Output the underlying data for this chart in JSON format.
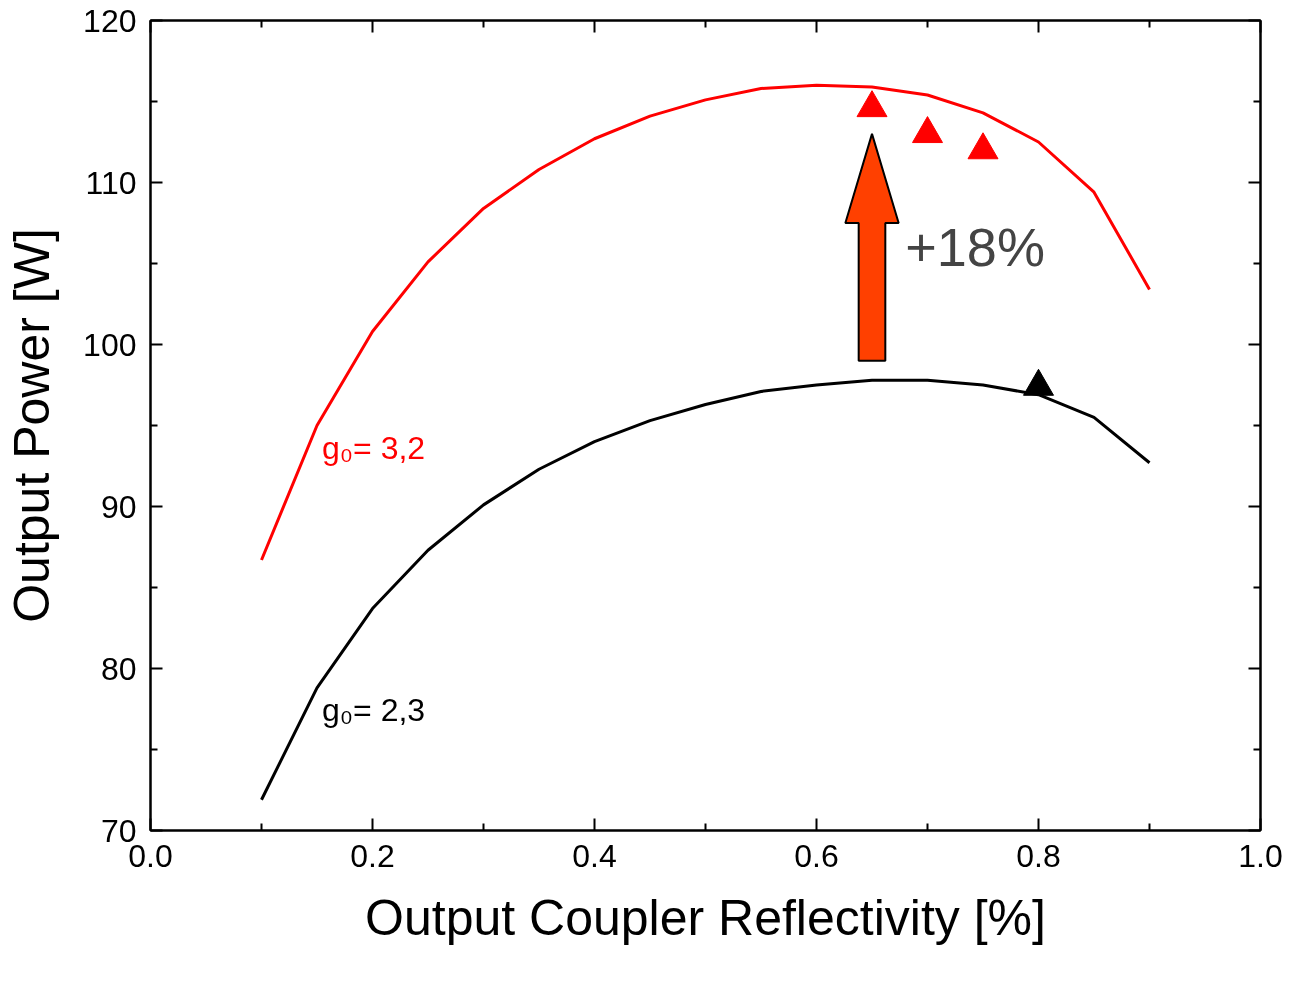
{
  "chart_data": {
    "type": "line",
    "xlabel": "Output Coupler Reflectivity [%]",
    "ylabel": "Output Power [W]",
    "xlim": [
      0.0,
      1.0
    ],
    "xticks": [
      {
        "value": 0.0,
        "label": "0.0"
      },
      0.2,
      0.4,
      0.6,
      0.8,
      {
        "value": 1.0,
        "label": "1.0"
      }
    ],
    "ylim": [
      70,
      120
    ],
    "yticks": [
      70,
      80,
      90,
      100,
      110,
      120
    ],
    "grid": false,
    "legend": false,
    "line_style": "solid",
    "annotations": [
      "+18%"
    ],
    "series": [
      {
        "name": "g₀= 3,2",
        "color": "#ff0000",
        "marker": "none",
        "x": [
          0.1,
          0.15,
          0.2,
          0.25,
          0.3,
          0.35,
          0.4,
          0.45,
          0.5,
          0.55,
          0.6,
          0.65,
          0.7,
          0.75,
          0.8,
          0.85,
          0.9
        ],
        "values": [
          86.7,
          95.0,
          100.8,
          105.1,
          108.4,
          110.8,
          112.7,
          114.1,
          115.1,
          115.8,
          116.0,
          115.9,
          115.4,
          114.3,
          112.5,
          109.4,
          103.4
        ]
      },
      {
        "name": "g₀= 2,3",
        "color": "#000000",
        "marker": "none",
        "x": [
          0.1,
          0.15,
          0.2,
          0.25,
          0.3,
          0.35,
          0.4,
          0.45,
          0.5,
          0.55,
          0.6,
          0.65,
          0.7,
          0.75,
          0.8,
          0.85,
          0.9
        ],
        "values": [
          71.9,
          78.8,
          83.7,
          87.3,
          90.1,
          92.3,
          94.0,
          95.3,
          96.3,
          97.1,
          97.5,
          97.8,
          97.8,
          97.5,
          96.9,
          95.5,
          92.7
        ]
      },
      {
        "type": "scatter",
        "color": "#ff0000",
        "marker": "triangle",
        "x": [
          0.65,
          0.7,
          0.75
        ],
        "values": [
          114.6,
          113.0,
          112.0
        ]
      },
      {
        "type": "scatter",
        "color": "#000000",
        "marker": "triangle",
        "x": [
          0.8
        ],
        "values": [
          97.4
        ]
      }
    ]
  }
}
